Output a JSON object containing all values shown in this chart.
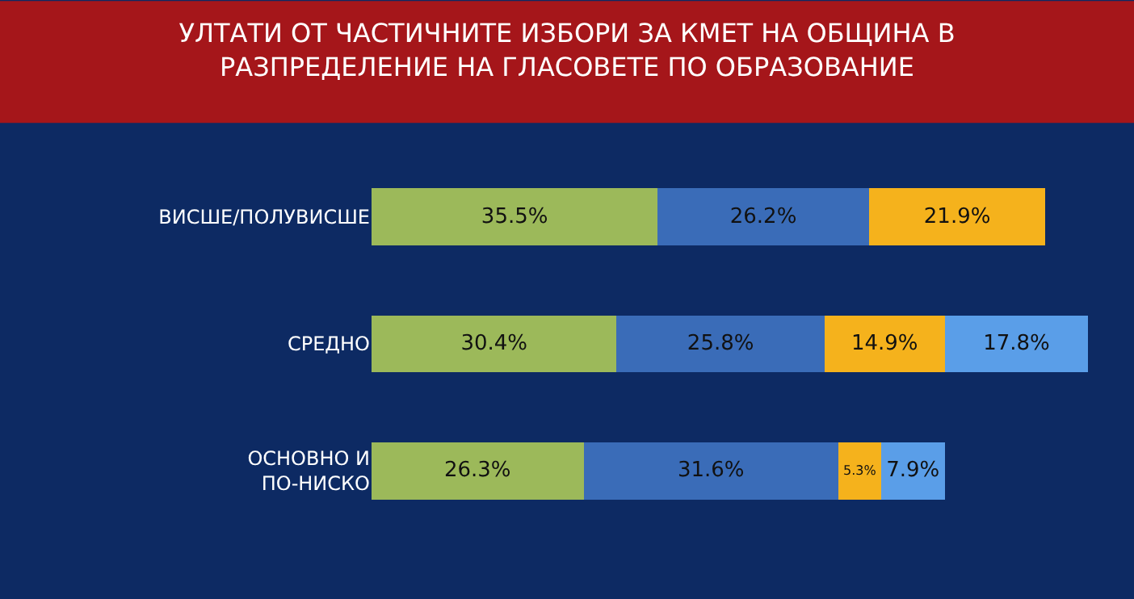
{
  "chart_data": {
    "type": "bar",
    "orientation": "horizontal",
    "stacked": true,
    "title": "УЛТАТИ ОТ ЧАСТИЧНИТЕ ИЗБОРИ ЗА КМЕТ НА ОБЩИНА В",
    "subtitle": "РАЗПРЕДЕЛЕНИЕ НА ГЛАСОВЕТЕ ПО ОБРАЗОВАНИЕ",
    "categories": [
      "ВИСШЕ/ПОЛУВИСШЕ",
      "СРЕДНО",
      "ОСНОВНО И ПО-НИСКО"
    ],
    "series": [
      {
        "color": "#9cb95a",
        "values": [
          35.5,
          30.4,
          26.3
        ],
        "value_labels": [
          "35.5%",
          "30.4%",
          "26.3%"
        ]
      },
      {
        "color": "#3a6cb8",
        "values": [
          26.2,
          25.8,
          31.6
        ],
        "value_labels": [
          "26.2%",
          "25.8%",
          "31.6%"
        ]
      },
      {
        "color": "#f5b21c",
        "values": [
          21.9,
          14.9,
          5.3
        ],
        "value_labels": [
          "21.9%",
          "14.9%",
          "5.3%"
        ]
      },
      {
        "color": "#5a9ee8",
        "values": [
          null,
          17.8,
          7.9
        ],
        "value_labels": [
          null,
          "17.8%",
          "7.9%"
        ]
      }
    ]
  }
}
